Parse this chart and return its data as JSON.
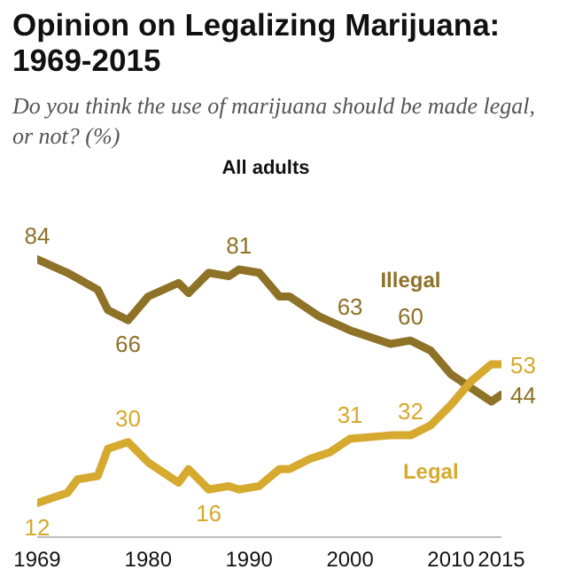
{
  "chart_data": {
    "type": "line",
    "title": "Opinion on Legalizing Marijuana: 1969-2015",
    "subtitle": "Do you think the use of marijuana should be made legal, or not? (%)",
    "annotations": [
      "All adults"
    ],
    "xlim": [
      1969,
      2015
    ],
    "xticks": [
      1969,
      1980,
      1990,
      2000,
      2010,
      2015
    ],
    "legend": false,
    "marker": "none",
    "line_style": "solid",
    "series": [
      {
        "name": "Illegal",
        "color": "#8e7227",
        "x": [
          1969,
          1972,
          1975,
          1976,
          1978,
          1980,
          1983,
          1984,
          1986,
          1988,
          1989,
          1991,
          1993,
          1994,
          1997,
          2000,
          2004,
          2006,
          2008,
          2010,
          2012,
          2014,
          2015
        ],
        "values": [
          84,
          80,
          75,
          69,
          66,
          73,
          77,
          74,
          80,
          79,
          81,
          80,
          73,
          73,
          67,
          63,
          59,
          60,
          57,
          50,
          46,
          42,
          44
        ],
        "value_labels": [
          "84",
          null,
          null,
          null,
          "66",
          null,
          null,
          null,
          null,
          null,
          "81",
          null,
          null,
          null,
          null,
          "63",
          null,
          "60",
          null,
          null,
          null,
          null,
          "44"
        ]
      },
      {
        "name": "Legal",
        "color": "#d6a92f",
        "x": [
          1969,
          1972,
          1973,
          1975,
          1976,
          1978,
          1980,
          1983,
          1984,
          1986,
          1988,
          1989,
          1991,
          1993,
          1994,
          1996,
          1998,
          2000,
          2004,
          2006,
          2008,
          2010,
          2012,
          2014,
          2015
        ],
        "values": [
          12,
          15,
          19,
          20,
          28,
          30,
          24,
          18,
          22,
          16,
          17,
          16,
          17,
          22,
          22,
          25,
          27,
          31,
          32,
          32,
          35,
          41,
          48,
          53,
          53
        ],
        "value_labels": [
          "12",
          null,
          null,
          null,
          null,
          "30",
          null,
          null,
          null,
          "16",
          null,
          null,
          null,
          null,
          null,
          null,
          null,
          "31",
          null,
          "32",
          null,
          null,
          null,
          null,
          "53"
        ]
      }
    ]
  }
}
